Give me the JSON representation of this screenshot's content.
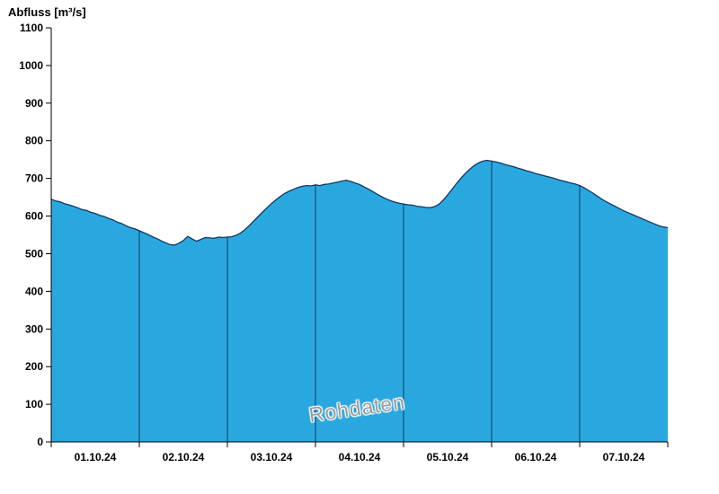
{
  "title": "Abfluss [m³/s]",
  "watermark": "Rohdaten",
  "chart_data": {
    "type": "area",
    "title": "Abfluss [m³/s]",
    "xlabel": "",
    "ylabel": "Abfluss [m³/s]",
    "ylim": [
      0,
      1100
    ],
    "y_ticks": [
      0,
      100,
      200,
      300,
      400,
      500,
      600,
      700,
      800,
      900,
      1000,
      1100
    ],
    "x_range_days": [
      0,
      7
    ],
    "x_tick_labels": [
      "01.10.24",
      "02.10.24",
      "03.10.24",
      "04.10.24",
      "05.10.24",
      "06.10.24",
      "07.10.24"
    ],
    "day_boundaries": [
      1,
      2,
      3,
      4,
      5,
      6
    ],
    "grid": false,
    "legend": "none",
    "fill_color": "#29a8e0",
    "line_color": "#16365c",
    "axis_color": "#000000",
    "series": [
      {
        "name": "Rohdaten",
        "x_step_days": 0.05,
        "values": [
          645,
          640,
          638,
          633,
          630,
          626,
          622,
          617,
          615,
          610,
          607,
          602,
          599,
          594,
          590,
          584,
          580,
          574,
          569,
          566,
          561,
          556,
          551,
          545,
          540,
          534,
          529,
          524,
          523,
          528,
          535,
          546,
          539,
          533,
          538,
          543,
          542,
          541,
          544,
          543,
          544,
          545,
          549,
          555,
          564,
          575,
          587,
          599,
          611,
          622,
          633,
          643,
          652,
          660,
          666,
          671,
          676,
          679,
          681,
          680,
          683,
          681,
          684,
          685,
          688,
          690,
          693,
          695,
          692,
          688,
          684,
          678,
          672,
          665,
          658,
          652,
          646,
          641,
          637,
          634,
          632,
          630,
          629,
          626,
          625,
          623,
          622,
          625,
          631,
          642,
          656,
          671,
          686,
          700,
          713,
          724,
          734,
          741,
          746,
          748,
          746,
          744,
          741,
          737,
          734,
          731,
          727,
          724,
          720,
          717,
          713,
          710,
          707,
          704,
          701,
          697,
          694,
          691,
          688,
          685,
          681,
          675,
          668,
          661,
          653,
          645,
          638,
          632,
          626,
          620,
          614,
          609,
          604,
          599,
          594,
          589,
          584,
          579,
          574,
          571,
          569
        ]
      }
    ]
  }
}
